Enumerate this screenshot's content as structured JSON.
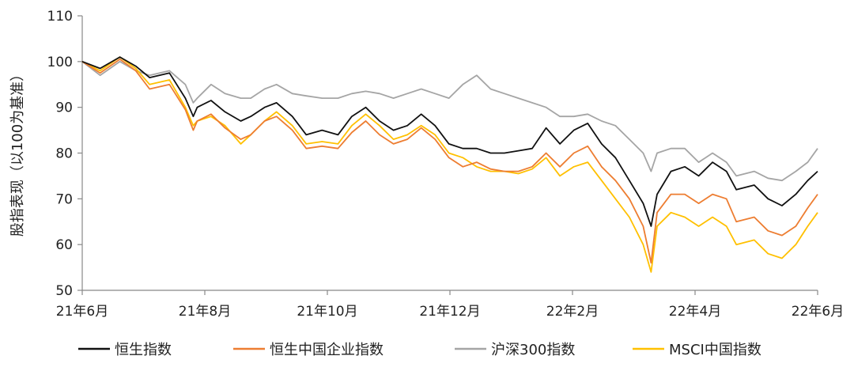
{
  "chart_data": {
    "type": "line",
    "ylabel": "股指表现（以100为基准）",
    "ylim": [
      50,
      110
    ],
    "yticks": [
      50,
      60,
      70,
      80,
      90,
      100,
      110
    ],
    "xticks": [
      "21年6月",
      "21年8月",
      "21年10月",
      "21年12月",
      "22年2月",
      "22年4月",
      "22年6月"
    ],
    "x": [
      "2021-06-01",
      "2021-06-10",
      "2021-06-20",
      "2021-06-28",
      "2021-07-05",
      "2021-07-15",
      "2021-07-23",
      "2021-07-27",
      "2021-07-29",
      "2021-08-05",
      "2021-08-12",
      "2021-08-20",
      "2021-08-25",
      "2021-09-01",
      "2021-09-07",
      "2021-09-15",
      "2021-09-22",
      "2021-09-30",
      "2021-10-08",
      "2021-10-15",
      "2021-10-22",
      "2021-10-29",
      "2021-11-05",
      "2021-11-12",
      "2021-11-19",
      "2021-11-26",
      "2021-12-03",
      "2021-12-10",
      "2021-12-17",
      "2021-12-24",
      "2021-12-31",
      "2022-01-07",
      "2022-01-14",
      "2022-01-21",
      "2022-01-28",
      "2022-02-04",
      "2022-02-11",
      "2022-02-18",
      "2022-02-25",
      "2022-03-04",
      "2022-03-11",
      "2022-03-15",
      "2022-03-18",
      "2022-03-25",
      "2022-04-01",
      "2022-04-08",
      "2022-04-15",
      "2022-04-22",
      "2022-04-27",
      "2022-05-06",
      "2022-05-13",
      "2022-05-20",
      "2022-05-27",
      "2022-06-02",
      "2022-06-07"
    ],
    "series": [
      {
        "name": "恒生指数",
        "color": "#111111",
        "values": [
          100,
          98.5,
          101,
          99,
          96.5,
          97.5,
          92,
          88,
          90,
          91.5,
          89,
          87,
          88,
          90,
          91,
          88,
          84,
          85,
          84,
          88,
          90,
          87,
          85,
          86,
          88.5,
          86,
          82,
          81,
          81,
          80,
          80,
          80.5,
          81,
          85.5,
          82,
          85,
          86.5,
          82,
          79,
          74,
          69,
          64,
          71,
          76,
          77,
          75,
          78,
          76,
          72,
          73,
          70,
          68.5,
          71,
          74,
          76
        ]
      },
      {
        "name": "恒生中国企业指数",
        "color": "#ED7D31",
        "values": [
          100,
          97.5,
          100.5,
          98,
          94,
          95,
          89.5,
          85,
          87,
          88.5,
          85.5,
          83,
          84,
          87,
          88,
          85,
          81,
          81.5,
          81,
          84.5,
          87,
          84,
          82,
          83,
          85.5,
          83,
          79,
          77,
          78,
          76.5,
          76,
          76,
          77,
          80,
          77,
          80,
          81.5,
          77,
          74,
          70,
          64,
          56,
          67,
          71,
          71,
          69,
          71,
          70,
          65,
          66,
          63,
          62,
          64,
          68,
          71
        ]
      },
      {
        "name": "沪深300指数",
        "color": "#A5A5A5",
        "values": [
          100,
          97,
          100,
          98,
          97,
          98,
          95,
          91,
          92,
          95,
          93,
          92,
          92,
          94,
          95,
          93,
          92.5,
          92,
          92,
          93,
          93.5,
          93,
          92,
          93,
          94,
          93,
          92,
          95,
          97,
          94,
          93,
          92,
          91,
          90,
          88,
          88,
          88.5,
          87,
          86,
          83,
          80,
          76,
          80,
          81,
          81,
          78,
          80,
          78,
          75,
          76,
          74.5,
          74,
          76,
          78,
          81
        ]
      },
      {
        "name": "MSCI中国指数",
        "color": "#FFC000",
        "values": [
          100,
          98,
          101,
          98.5,
          95,
          96,
          90,
          86,
          87,
          88,
          86,
          82,
          84,
          87,
          89,
          86,
          82,
          82.5,
          82,
          86,
          88.5,
          86,
          83,
          84,
          86,
          84,
          80,
          79,
          77,
          76,
          76,
          75.5,
          76.5,
          79,
          75,
          77,
          78,
          74,
          70,
          66,
          60,
          54,
          64,
          67,
          66,
          64,
          66,
          64,
          60,
          61,
          58,
          57,
          60,
          64,
          67
        ]
      }
    ]
  }
}
